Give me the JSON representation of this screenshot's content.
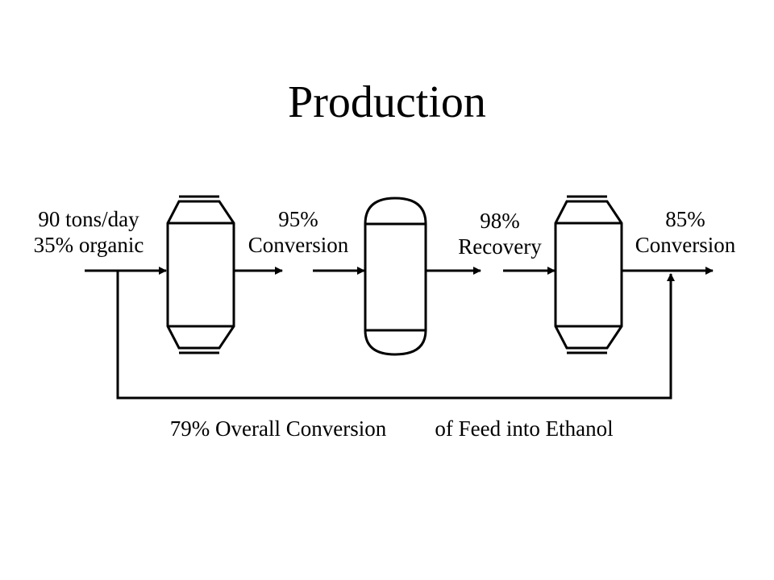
{
  "title": "Production",
  "feed": {
    "line1": "90 tons/day",
    "line2": "35% organic"
  },
  "stage1": {
    "line1": "95%",
    "line2": "Conversion"
  },
  "stage2": {
    "line1": "98%",
    "line2": "Recovery"
  },
  "stage3": {
    "line1": "85%",
    "line2": "Conversion"
  },
  "footer": {
    "part1": "79% Overall Conversion",
    "part2": "of Feed into Ethanol"
  },
  "colors": {
    "ink": "#000000",
    "background": "#ffffff"
  }
}
